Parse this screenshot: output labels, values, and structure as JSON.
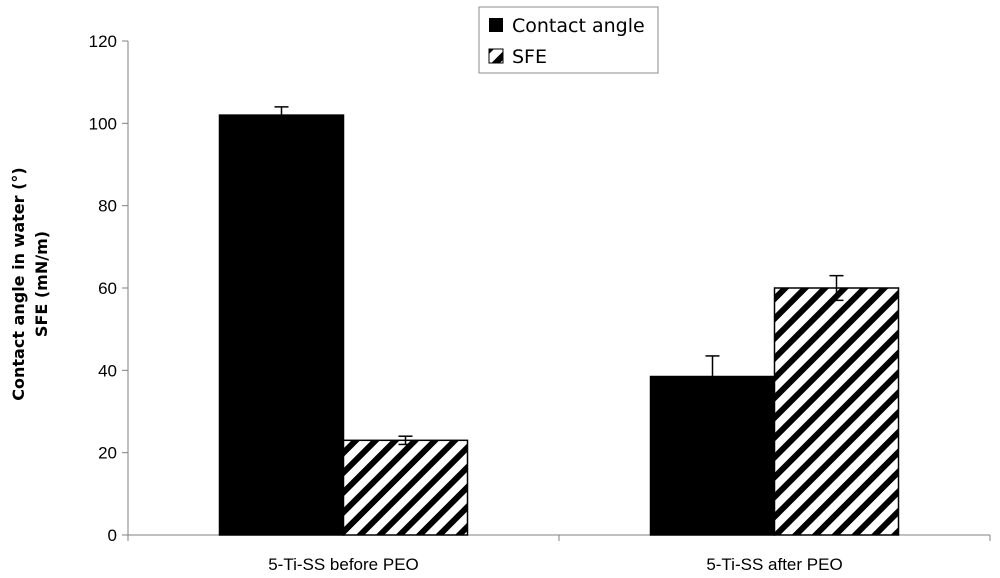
{
  "chart_data": {
    "type": "bar",
    "categories": [
      "5-Ti-SS before PEO",
      "5-Ti-SS after PEO"
    ],
    "series": [
      {
        "name": "Contact angle",
        "values": [
          102,
          38.5
        ],
        "errors": [
          2,
          5
        ],
        "fill": "solid",
        "color": "#000000"
      },
      {
        "name": "SFE",
        "values": [
          23,
          60
        ],
        "errors": [
          1,
          3
        ],
        "fill": "diagonal-hatch",
        "color": "#000000"
      }
    ],
    "ylim": [
      0,
      120
    ],
    "yticks": [
      "0",
      "20",
      "40",
      "60",
      "80",
      "100",
      "120"
    ],
    "ylabel_line1": "Contact angle in water (°)",
    "ylabel_line2": "SFE (mN/m)",
    "legend_position": "top-center",
    "grid": false
  }
}
